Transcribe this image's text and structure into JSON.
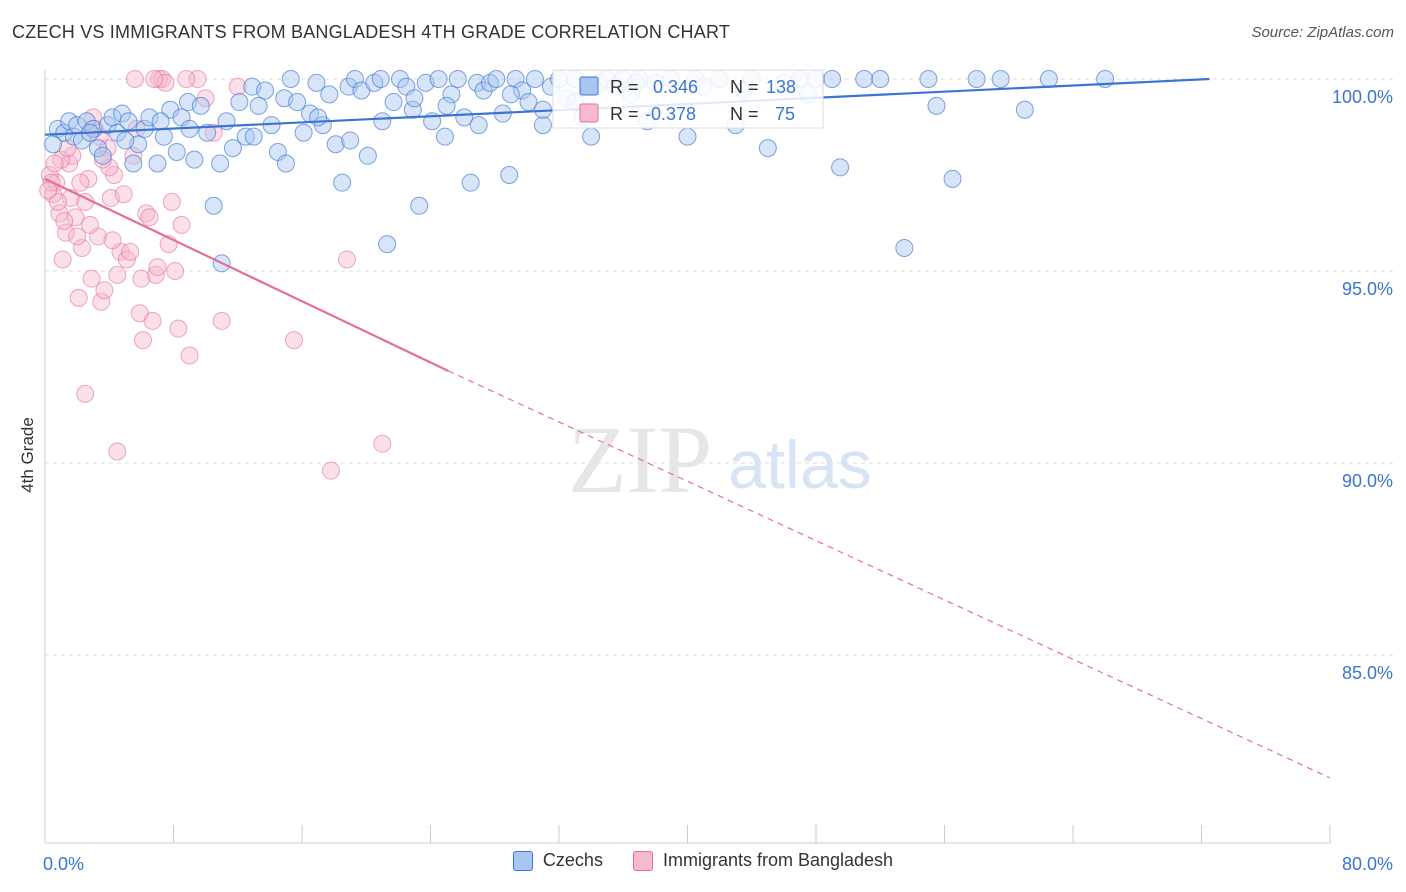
{
  "title": "CZECH VS IMMIGRANTS FROM BANGLADESH 4TH GRADE CORRELATION CHART",
  "source": "Source: ZipAtlas.com",
  "watermark": {
    "zip": "ZIP",
    "atlas": "atlas"
  },
  "colors": {
    "blue": "#3b74d4",
    "blue_fill": "#a9c6f0",
    "blue_text": "#3b74d4",
    "pink": "#e46f9b",
    "pink_fill": "#f7b9cf",
    "grid": "#dddddd",
    "axis": "#cccccc"
  },
  "legend": {
    "czechs": "Czechs",
    "bangladesh": "Immigrants from Bangladesh"
  },
  "stats": {
    "blue": {
      "r_label": "R =",
      "r_value": "0.346",
      "n_label": "N =",
      "n_value": "138"
    },
    "pink": {
      "r_label": "R =",
      "r_value": "-0.378",
      "n_label": "N =",
      "n_value": "75"
    }
  },
  "chart_data": {
    "type": "scatter",
    "title": "CZECH VS IMMIGRANTS FROM BANGLADESH 4TH GRADE CORRELATION CHART",
    "xlabel": "",
    "ylabel": "4th Grade",
    "xlim": [
      0,
      80
    ],
    "ylim": [
      80.5,
      100.6
    ],
    "x_tick_labels": {
      "left": "0.0%",
      "right": "80.0%"
    },
    "y_ticks": [
      {
        "value": 100,
        "label": "100.0%"
      },
      {
        "value": 95,
        "label": "95.0%"
      },
      {
        "value": 90,
        "label": "90.0%"
      },
      {
        "value": 85,
        "label": "85.0%"
      }
    ],
    "series": [
      {
        "name": "Czechs",
        "color": "#3b74d4",
        "trend": {
          "x0": 0,
          "y0": 98.55,
          "x1": 72.5,
          "y1": 100.0
        },
        "points": [
          [
            0.5,
            98.3
          ],
          [
            0.8,
            98.7
          ],
          [
            1.2,
            98.6
          ],
          [
            1.5,
            98.9
          ],
          [
            1.8,
            98.5
          ],
          [
            2.0,
            98.8
          ],
          [
            2.3,
            98.4
          ],
          [
            2.6,
            98.9
          ],
          [
            3.0,
            98.7
          ],
          [
            3.3,
            98.2
          ],
          [
            3.6,
            98.0
          ],
          [
            3.9,
            98.8
          ],
          [
            4.2,
            99.0
          ],
          [
            4.5,
            98.6
          ],
          [
            4.8,
            99.1
          ],
          [
            5.2,
            98.9
          ],
          [
            5.5,
            97.8
          ],
          [
            5.8,
            98.3
          ],
          [
            6.2,
            98.7
          ],
          [
            6.5,
            99.0
          ],
          [
            7.0,
            97.8
          ],
          [
            7.4,
            98.5
          ],
          [
            7.8,
            99.2
          ],
          [
            8.2,
            98.1
          ],
          [
            8.5,
            99.0
          ],
          [
            8.9,
            99.4
          ],
          [
            9.3,
            97.9
          ],
          [
            9.7,
            99.3
          ],
          [
            10.1,
            98.6
          ],
          [
            10.5,
            96.7
          ],
          [
            10.9,
            97.8
          ],
          [
            11.3,
            98.9
          ],
          [
            11.7,
            98.2
          ],
          [
            12.1,
            99.4
          ],
          [
            12.5,
            98.5
          ],
          [
            12.9,
            99.8
          ],
          [
            13.3,
            99.3
          ],
          [
            13.7,
            99.7
          ],
          [
            14.1,
            98.8
          ],
          [
            14.5,
            98.1
          ],
          [
            14.9,
            99.5
          ],
          [
            15.3,
            100.0
          ],
          [
            15.7,
            99.4
          ],
          [
            16.1,
            98.6
          ],
          [
            16.5,
            99.1
          ],
          [
            16.9,
            99.9
          ],
          [
            17.3,
            98.8
          ],
          [
            17.7,
            99.6
          ],
          [
            18.1,
            98.3
          ],
          [
            18.5,
            97.3
          ],
          [
            18.9,
            99.8
          ],
          [
            19.3,
            100.0
          ],
          [
            19.7,
            99.7
          ],
          [
            20.1,
            98.0
          ],
          [
            20.5,
            99.9
          ],
          [
            20.9,
            100.0
          ],
          [
            21.3,
            95.7
          ],
          [
            21.7,
            99.4
          ],
          [
            22.1,
            100.0
          ],
          [
            22.5,
            99.8
          ],
          [
            22.9,
            99.2
          ],
          [
            23.3,
            96.7
          ],
          [
            23.7,
            99.9
          ],
          [
            24.1,
            98.9
          ],
          [
            24.5,
            100.0
          ],
          [
            24.9,
            98.5
          ],
          [
            25.3,
            99.6
          ],
          [
            25.7,
            100.0
          ],
          [
            26.1,
            99.0
          ],
          [
            26.5,
            97.3
          ],
          [
            26.9,
            99.9
          ],
          [
            27.3,
            99.7
          ],
          [
            27.7,
            99.9
          ],
          [
            28.1,
            100.0
          ],
          [
            28.5,
            99.1
          ],
          [
            28.9,
            97.5
          ],
          [
            29.3,
            100.0
          ],
          [
            29.7,
            99.7
          ],
          [
            30.1,
            99.4
          ],
          [
            30.5,
            100.0
          ],
          [
            31.0,
            98.8
          ],
          [
            31.5,
            99.8
          ],
          [
            32.0,
            100.0
          ],
          [
            32.5,
            99.5
          ],
          [
            33.0,
            100.0
          ],
          [
            33.5,
            99.0
          ],
          [
            34.0,
            98.5
          ],
          [
            34.5,
            99.9
          ],
          [
            35.0,
            100.0
          ],
          [
            35.5,
            99.8
          ],
          [
            36.0,
            100.0
          ],
          [
            36.5,
            99.6
          ],
          [
            37.0,
            100.0
          ],
          [
            38.0,
            99.9
          ],
          [
            39.0,
            100.0
          ],
          [
            40.0,
            98.5
          ],
          [
            40.5,
            100.0
          ],
          [
            41.0,
            99.8
          ],
          [
            42.0,
            100.0
          ],
          [
            43.0,
            98.8
          ],
          [
            44.0,
            100.0
          ],
          [
            45.0,
            98.2
          ],
          [
            46.0,
            99.9
          ],
          [
            47.0,
            100.0
          ],
          [
            48.0,
            100.0
          ],
          [
            49.0,
            100.0
          ],
          [
            49.5,
            97.7
          ],
          [
            51.0,
            100.0
          ],
          [
            52.0,
            100.0
          ],
          [
            53.5,
            95.6
          ],
          [
            55.0,
            100.0
          ],
          [
            55.5,
            99.3
          ],
          [
            56.5,
            97.4
          ],
          [
            58.0,
            100.0
          ],
          [
            59.5,
            100.0
          ],
          [
            61.0,
            99.2
          ],
          [
            62.5,
            100.0
          ],
          [
            66.0,
            100.0
          ],
          [
            2.8,
            98.6
          ],
          [
            5.0,
            98.4
          ],
          [
            7.2,
            98.9
          ],
          [
            9.0,
            98.7
          ],
          [
            11.0,
            95.2
          ],
          [
            13.0,
            98.5
          ],
          [
            15.0,
            97.8
          ],
          [
            17.0,
            99.0
          ],
          [
            19.0,
            98.4
          ],
          [
            21.0,
            98.9
          ],
          [
            23.0,
            99.5
          ],
          [
            25.0,
            99.3
          ],
          [
            27.0,
            98.8
          ],
          [
            29.0,
            99.6
          ],
          [
            31.0,
            99.2
          ],
          [
            33.0,
            99.4
          ],
          [
            36.8,
            99.9
          ],
          [
            43.5,
            99.7
          ],
          [
            47.5,
            99.6
          ],
          [
            37.5,
            98.9
          ]
        ]
      },
      {
        "name": "Immigrants from Bangladesh",
        "color": "#e46f9b",
        "trend": {
          "x0": 0,
          "y0": 97.4,
          "x1": 25.1,
          "y1": 92.4,
          "dash_x1": 80,
          "dash_y1": 81.8
        },
        "points": [
          [
            0.3,
            97.5
          ],
          [
            0.5,
            97.0
          ],
          [
            0.7,
            97.3
          ],
          [
            0.9,
            96.5
          ],
          [
            1.1,
            95.3
          ],
          [
            1.3,
            96.0
          ],
          [
            1.5,
            97.8
          ],
          [
            1.7,
            98.0
          ],
          [
            1.9,
            96.4
          ],
          [
            2.1,
            94.3
          ],
          [
            2.3,
            95.6
          ],
          [
            2.5,
            96.8
          ],
          [
            2.7,
            97.4
          ],
          [
            2.9,
            94.8
          ],
          [
            3.1,
            98.7
          ],
          [
            3.3,
            95.9
          ],
          [
            3.5,
            94.2
          ],
          [
            3.7,
            94.5
          ],
          [
            3.9,
            98.2
          ],
          [
            4.1,
            96.9
          ],
          [
            4.3,
            97.5
          ],
          [
            4.5,
            94.9
          ],
          [
            4.7,
            95.5
          ],
          [
            4.9,
            97.0
          ],
          [
            5.1,
            95.3
          ],
          [
            5.3,
            95.5
          ],
          [
            5.5,
            98.0
          ],
          [
            5.7,
            98.7
          ],
          [
            5.9,
            93.9
          ],
          [
            6.1,
            93.2
          ],
          [
            6.3,
            96.5
          ],
          [
            6.5,
            96.4
          ],
          [
            6.7,
            93.7
          ],
          [
            6.9,
            94.9
          ],
          [
            7.1,
            100.0
          ],
          [
            7.3,
            100.0
          ],
          [
            7.5,
            99.9
          ],
          [
            7.7,
            95.7
          ],
          [
            7.9,
            96.8
          ],
          [
            8.1,
            95.0
          ],
          [
            8.3,
            93.5
          ],
          [
            8.5,
            96.2
          ],
          [
            9.0,
            92.8
          ],
          [
            9.5,
            100.0
          ],
          [
            10.0,
            99.5
          ],
          [
            10.5,
            98.6
          ],
          [
            11.0,
            93.7
          ],
          [
            12.0,
            99.8
          ],
          [
            2.5,
            91.8
          ],
          [
            4.5,
            90.3
          ],
          [
            15.5,
            93.2
          ],
          [
            17.8,
            89.8
          ],
          [
            18.8,
            95.3
          ],
          [
            21.0,
            90.5
          ],
          [
            1.0,
            97.9
          ],
          [
            1.6,
            96.9
          ],
          [
            2.2,
            97.3
          ],
          [
            2.8,
            96.2
          ],
          [
            3.4,
            98.5
          ],
          [
            4.0,
            97.7
          ],
          [
            5.6,
            100.0
          ],
          [
            6.8,
            100.0
          ],
          [
            8.8,
            100.0
          ],
          [
            0.4,
            97.3
          ],
          [
            0.6,
            97.8
          ],
          [
            0.8,
            96.8
          ],
          [
            1.2,
            96.3
          ],
          [
            1.4,
            98.2
          ],
          [
            3.0,
            99.0
          ],
          [
            3.6,
            97.9
          ],
          [
            4.2,
            95.8
          ],
          [
            6.0,
            94.8
          ],
          [
            7.0,
            95.1
          ],
          [
            2.0,
            95.9
          ],
          [
            0.2,
            97.1
          ]
        ]
      }
    ]
  }
}
